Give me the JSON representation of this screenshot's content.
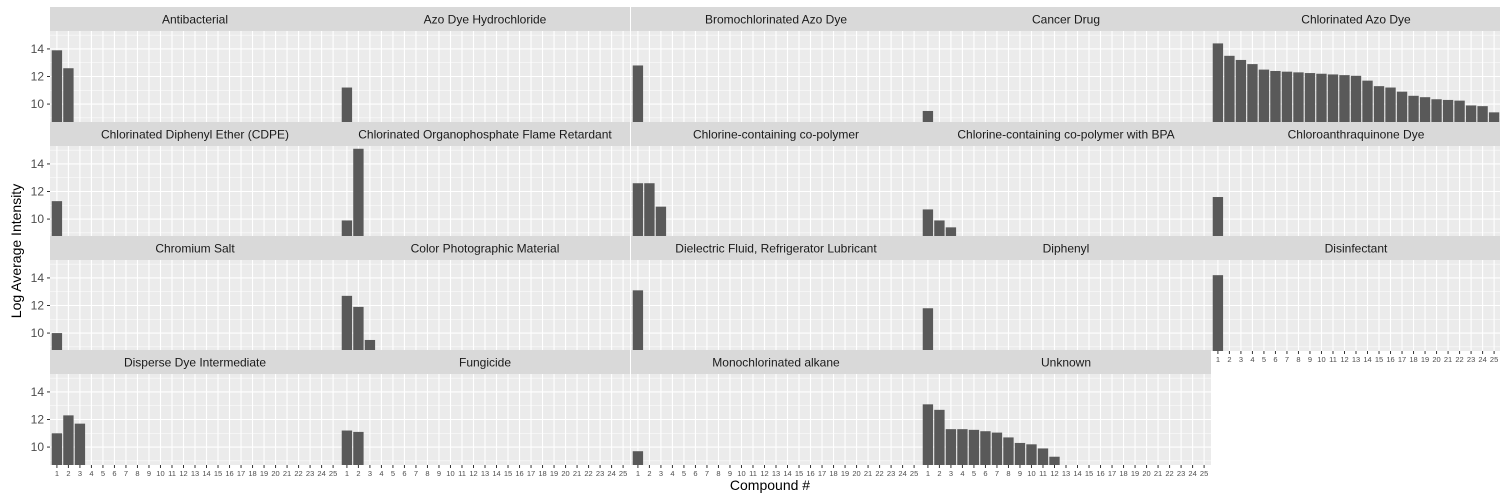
{
  "chart_data": {
    "type": "bar",
    "layout": "facet_wrap",
    "ncol": 5,
    "xlabel": "Compound #",
    "ylabel": "Log Average Intensity",
    "x": [
      1,
      2,
      3,
      4,
      5,
      6,
      7,
      8,
      9,
      10,
      11,
      12,
      13,
      14,
      15,
      16,
      17,
      18,
      19,
      20,
      21,
      22,
      23,
      24,
      25
    ],
    "ylim": [
      8.7,
      15.3
    ],
    "yticks": [
      10,
      12,
      14
    ],
    "colors": {
      "bar": "#595959",
      "panel": "#ebebeb",
      "strip": "#d9d9d9",
      "grid": "#ffffff"
    },
    "panels": [
      {
        "label": "Antibacterial",
        "values": [
          13.9,
          12.6
        ]
      },
      {
        "label": "Azo Dye Hydrochloride",
        "values": [
          11.2
        ]
      },
      {
        "label": "Bromochlorinated Azo Dye",
        "values": [
          12.8
        ]
      },
      {
        "label": "Cancer Drug",
        "values": [
          9.5
        ]
      },
      {
        "label": "Chlorinated Azo Dye",
        "values": [
          14.4,
          13.5,
          13.2,
          12.9,
          12.5,
          12.4,
          12.35,
          12.3,
          12.25,
          12.2,
          12.15,
          12.1,
          12.05,
          11.7,
          11.3,
          11.2,
          10.9,
          10.6,
          10.5,
          10.35,
          10.3,
          10.25,
          9.9,
          9.85,
          9.4
        ]
      },
      {
        "label": "Chlorinated Diphenyl Ether (CDPE)",
        "values": [
          11.3
        ]
      },
      {
        "label": "Chlorinated Organophosphate Flame Retardant",
        "values": [
          9.9,
          15.1
        ]
      },
      {
        "label": "Chlorine-containing co-polymer",
        "values": [
          12.6,
          12.6,
          10.9
        ]
      },
      {
        "label": "Chlorine-containing co-polymer with BPA",
        "values": [
          10.7,
          9.9,
          9.4
        ]
      },
      {
        "label": "Chloroanthraquinone Dye",
        "values": [
          11.6
        ]
      },
      {
        "label": "Chromium Salt",
        "values": [
          10.0
        ]
      },
      {
        "label": "Color Photographic Material",
        "values": [
          12.7,
          11.9,
          9.5
        ]
      },
      {
        "label": "Dielectric Fluid, Refrigerator Lubricant",
        "values": [
          13.1
        ]
      },
      {
        "label": "Diphenyl",
        "values": [
          11.8
        ]
      },
      {
        "label": "Disinfectant",
        "values": [
          14.2
        ]
      },
      {
        "label": "Disperse Dye Intermediate",
        "values": [
          11.0,
          12.3,
          11.7
        ]
      },
      {
        "label": "Fungicide",
        "values": [
          11.2,
          11.1
        ]
      },
      {
        "label": "Monochlorinated alkane",
        "values": [
          9.7
        ]
      },
      {
        "label": "Unknown",
        "values": [
          13.1,
          12.7,
          11.3,
          11.3,
          11.25,
          11.15,
          11.05,
          10.7,
          10.3,
          10.2,
          9.9,
          9.3
        ]
      }
    ]
  }
}
